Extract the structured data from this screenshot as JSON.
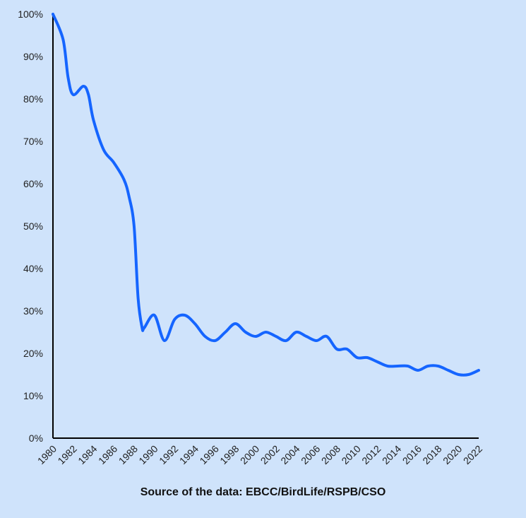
{
  "chart_data": {
    "type": "line",
    "x_ticks": [
      "1980",
      "1982",
      "1984",
      "1986",
      "1988",
      "1990",
      "1992",
      "1994",
      "1996",
      "1998",
      "2000",
      "2002",
      "2004",
      "2006",
      "2008",
      "2010",
      "2012",
      "2014",
      "2016",
      "2018",
      "2020",
      "2022"
    ],
    "y_ticks": [
      "0%",
      "10%",
      "20%",
      "30%",
      "40%",
      "50%",
      "60%",
      "70%",
      "80%",
      "90%",
      "100%"
    ],
    "xlim": [
      1980,
      2022
    ],
    "ylim": [
      0,
      100
    ],
    "grid": false,
    "line_color": "#1565ff",
    "series": [
      {
        "x": [
          1980,
          1981,
          1981.5,
          1982,
          1983,
          1983.5,
          1984,
          1985,
          1986,
          1987,
          1987.5,
          1988,
          1988.4,
          1988.8,
          1989,
          1990,
          1991,
          1992,
          1993,
          1994,
          1995,
          1996,
          1997,
          1998,
          1999,
          2000,
          2001,
          2002,
          2003,
          2004,
          2005,
          2006,
          2007,
          2008,
          2009,
          2010,
          2011,
          2012,
          2013,
          2014,
          2015,
          2016,
          2017,
          2018,
          2019,
          2020,
          2021,
          2022
        ],
        "values": [
          100,
          94,
          85,
          81,
          83,
          81,
          75,
          68,
          65,
          61,
          57,
          50,
          33,
          26,
          26,
          29,
          23,
          28,
          29,
          27,
          24,
          23,
          25,
          27,
          25,
          24,
          25,
          24,
          23,
          25,
          24,
          23,
          24,
          21,
          21,
          19,
          19,
          18,
          17,
          17,
          17,
          16,
          17,
          17,
          16,
          15,
          15,
          16
        ]
      }
    ]
  },
  "source_text": "Source of the data: EBCC/BirdLife/RSPB/CSO"
}
